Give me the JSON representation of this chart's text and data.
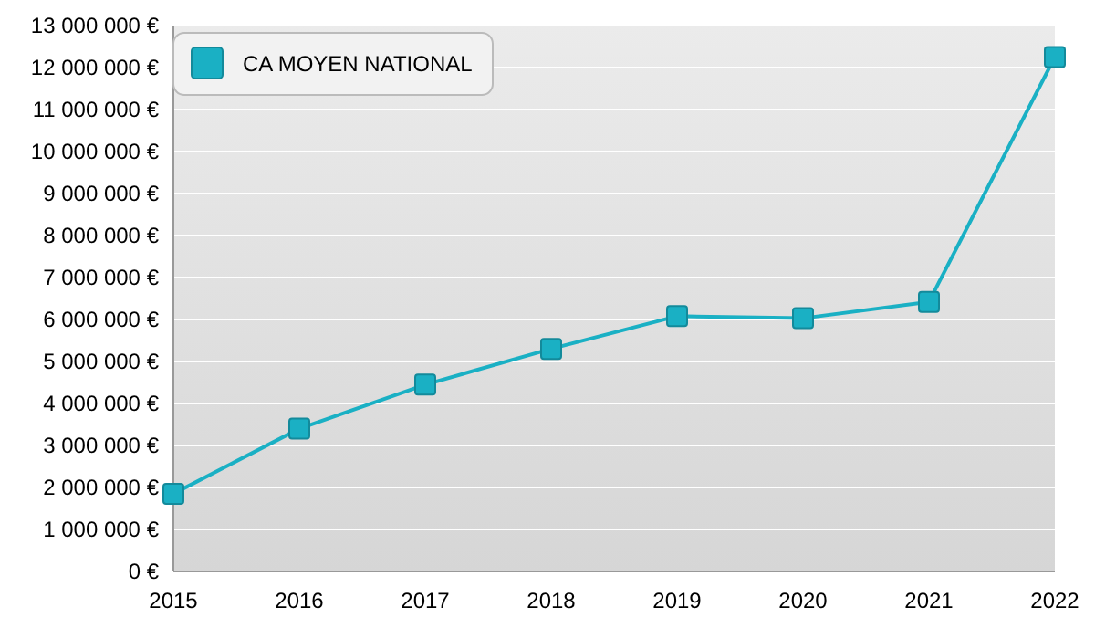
{
  "chart_data": {
    "type": "line",
    "x": [
      2015,
      2016,
      2017,
      2018,
      2019,
      2020,
      2021,
      2022
    ],
    "xlim": [
      2015,
      2022
    ],
    "xticks": [
      2015,
      2016,
      2017,
      2018,
      2019,
      2020,
      2021,
      2022
    ],
    "series": [
      {
        "name": "CA MOYEN NATIONAL",
        "color": "#1ab0c4",
        "values": [
          1850000,
          3400000,
          4450000,
          5300000,
          6080000,
          6030000,
          6420000,
          12250000
        ]
      }
    ],
    "ylim": [
      0,
      13000000
    ],
    "yticks": [
      {
        "value": 0,
        "label": "0 €"
      },
      {
        "value": 1000000,
        "label": "1 000 000 €"
      },
      {
        "value": 2000000,
        "label": "2 000 000 €"
      },
      {
        "value": 3000000,
        "label": "3 000 000 €"
      },
      {
        "value": 4000000,
        "label": "4 000 000 €"
      },
      {
        "value": 5000000,
        "label": "5 000 000 €"
      },
      {
        "value": 6000000,
        "label": "6 000 000 €"
      },
      {
        "value": 7000000,
        "label": "7 000 000 €"
      },
      {
        "value": 8000000,
        "label": "8 000 000 €"
      },
      {
        "value": 9000000,
        "label": "9 000 000 €"
      },
      {
        "value": 10000000,
        "label": "10 000 000 €"
      },
      {
        "value": 11000000,
        "label": "11 000 000 €"
      },
      {
        "value": 12000000,
        "label": "12 000 000 €"
      },
      {
        "value": 13000000,
        "label": "13 000 000 €"
      }
    ],
    "grid": "y",
    "legend": "top left",
    "marker": "square",
    "line_style": "solid"
  }
}
